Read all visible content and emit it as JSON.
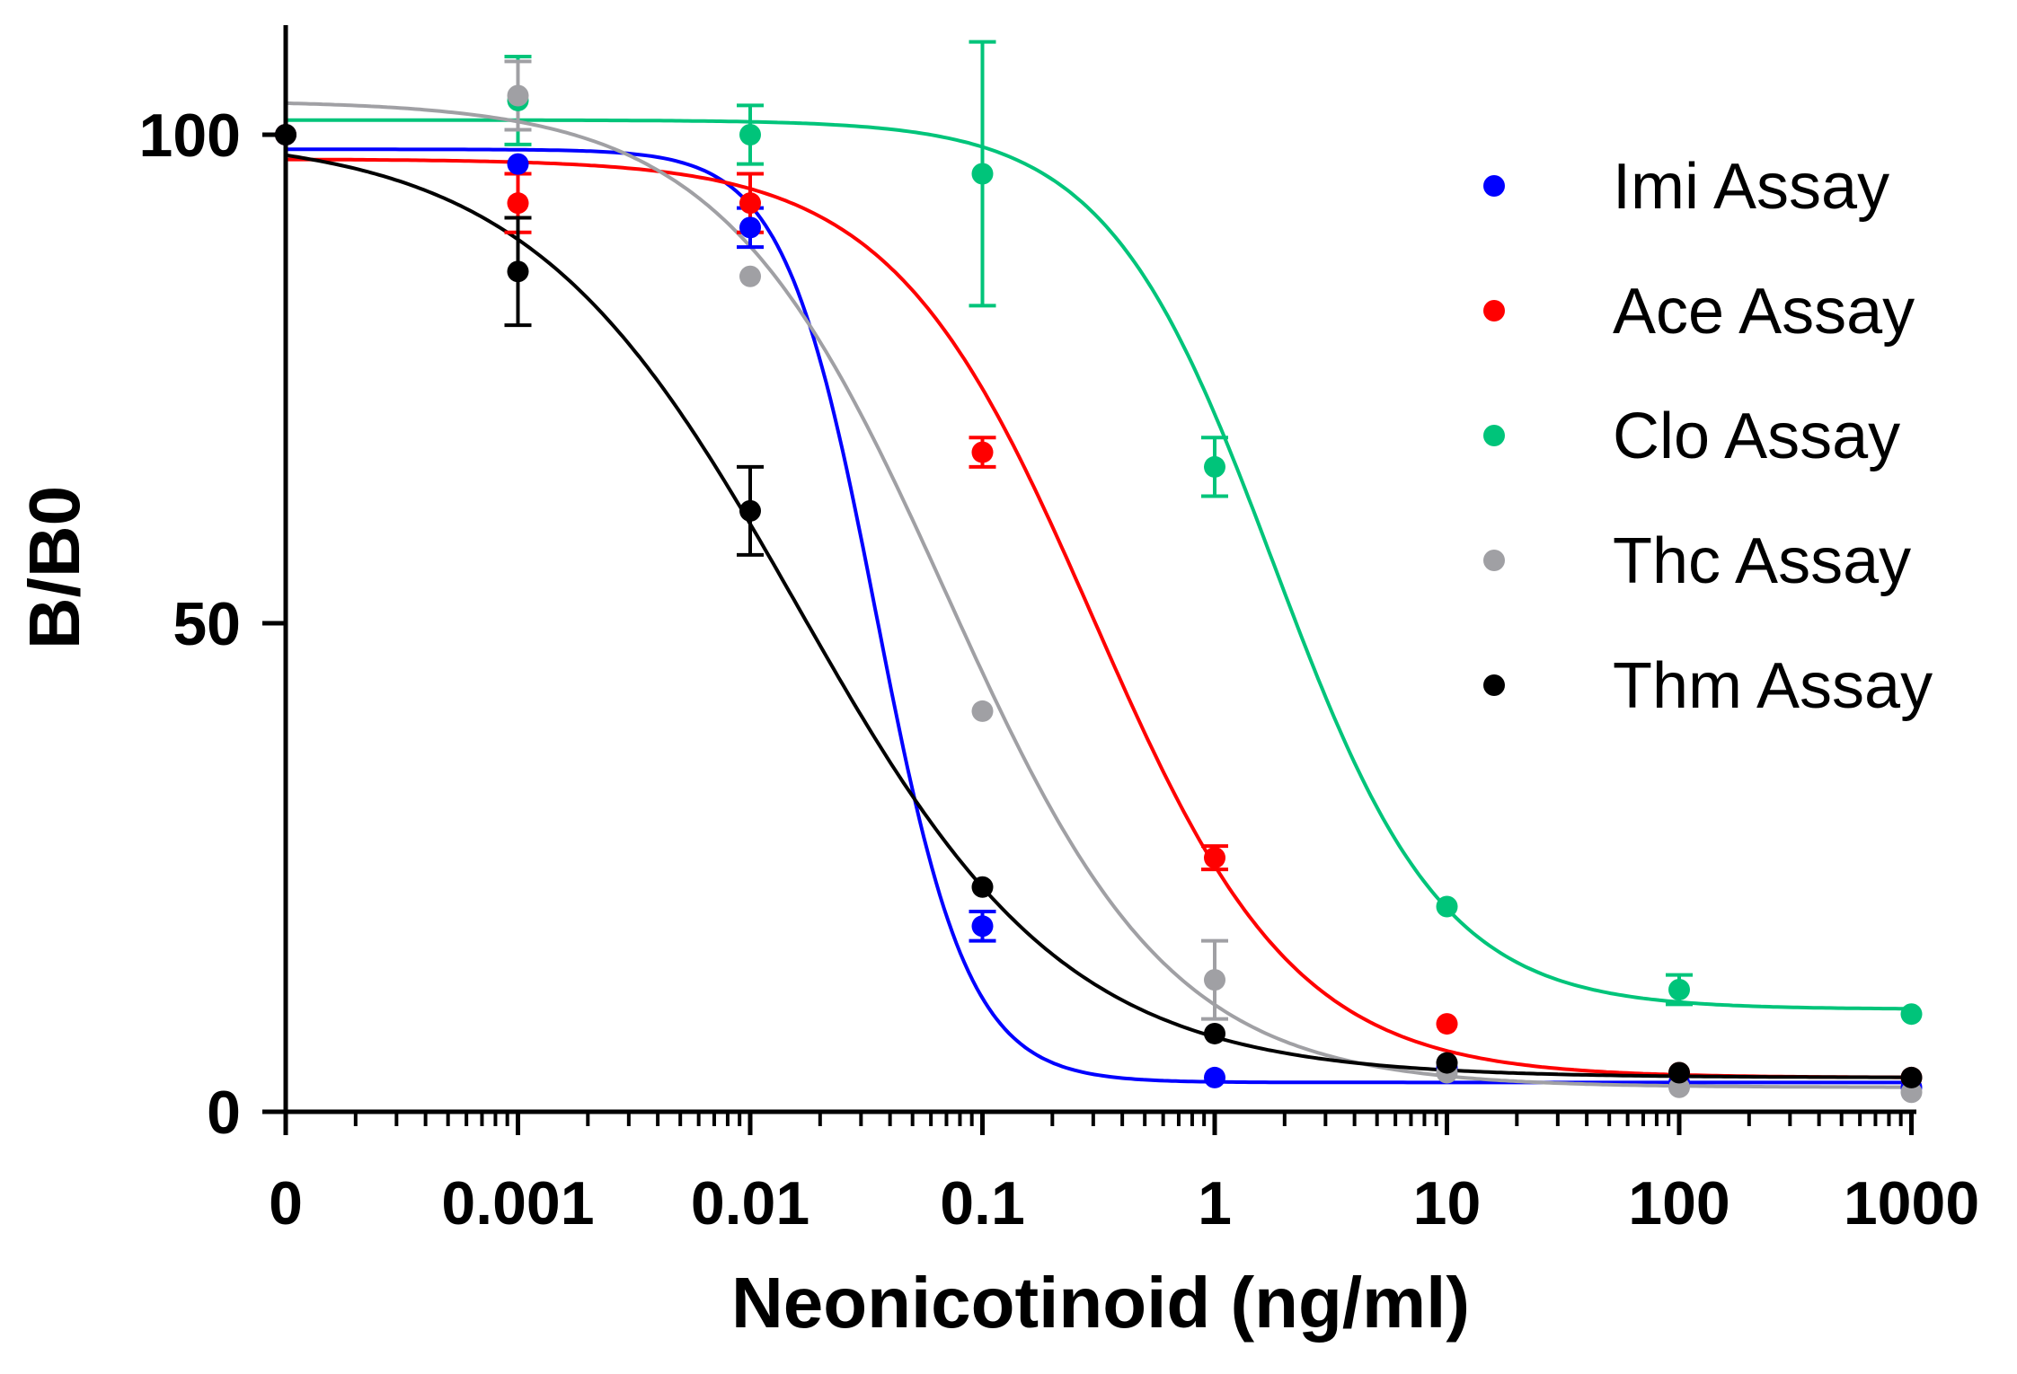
{
  "chart_data": {
    "type": "scatter",
    "title": "",
    "xlabel": "Neonicotinoid (ng/ml)",
    "ylabel": "B/B0",
    "x_scale": "log",
    "x_tick_labels": [
      "0",
      "0.001",
      "0.01",
      "0.1",
      "1",
      "10",
      "100",
      "1000"
    ],
    "x_tick_values": [
      0,
      0.001,
      0.01,
      0.1,
      1,
      10,
      100,
      1000
    ],
    "y_ticks": [
      0,
      50,
      100
    ],
    "ylim": [
      0,
      110
    ],
    "grid": false,
    "legend_position": "right",
    "series": [
      {
        "name": "Imi Assay",
        "color": "#0000ff",
        "x": [
          0,
          0.001,
          0.01,
          0.1,
          1,
          10,
          100,
          1000
        ],
        "y": [
          100,
          97,
          90.5,
          19,
          3.5,
          4.5,
          3,
          2.5
        ],
        "err": [
          0,
          0,
          2,
          1.5,
          0,
          0,
          0,
          0
        ],
        "fit": {
          "top": 98.5,
          "bottom": 3,
          "ec50": 0.035,
          "hill": 2.2
        }
      },
      {
        "name": "Ace Assay",
        "color": "#ff0000",
        "x": [
          0,
          0.001,
          0.01,
          0.1,
          1,
          10,
          100,
          1000
        ],
        "y": [
          100,
          93,
          93,
          67.5,
          26,
          9,
          4,
          3.5
        ],
        "err": [
          0,
          3,
          3,
          1.5,
          1.2,
          0,
          0,
          0
        ],
        "fit": {
          "top": 97.5,
          "bottom": 3.5,
          "ec50": 0.3,
          "hill": 1.0
        }
      },
      {
        "name": "Clo Assay",
        "color": "#00c47a",
        "x": [
          0.001,
          0.01,
          0.1,
          1,
          10,
          100,
          1000
        ],
        "y": [
          103.5,
          100,
          96,
          66,
          21,
          12.5,
          10
        ],
        "err": [
          4.5,
          3,
          13.5,
          3,
          0,
          1.5,
          0
        ],
        "fit": {
          "top": 101.5,
          "bottom": 10.5,
          "ec50": 1.8,
          "hill": 1.2
        }
      },
      {
        "name": "Thc Assay",
        "color": "#a0a0a4",
        "x": [
          0,
          0.001,
          0.01,
          0.1,
          1,
          10,
          100,
          1000
        ],
        "y": [
          100,
          104,
          85.5,
          41,
          13.5,
          4,
          2.5,
          2
        ],
        "err": [
          0,
          3.5,
          0,
          0,
          4,
          0,
          0,
          0
        ],
        "fit": {
          "top": 103.5,
          "bottom": 2.5,
          "ec50": 0.07,
          "hill": 0.9
        }
      },
      {
        "name": "Thm Assay",
        "color": "#000000",
        "x": [
          0,
          0.001,
          0.01,
          0.1,
          1,
          10,
          100,
          1000
        ],
        "y": [
          100,
          86,
          61.5,
          23,
          8,
          5,
          4,
          3.5
        ],
        "err": [
          0,
          5.5,
          4.5,
          0,
          0,
          0,
          0,
          0
        ],
        "fit": {
          "top": 100,
          "bottom": 3.5,
          "ec50": 0.016,
          "hill": 0.75
        }
      }
    ]
  }
}
